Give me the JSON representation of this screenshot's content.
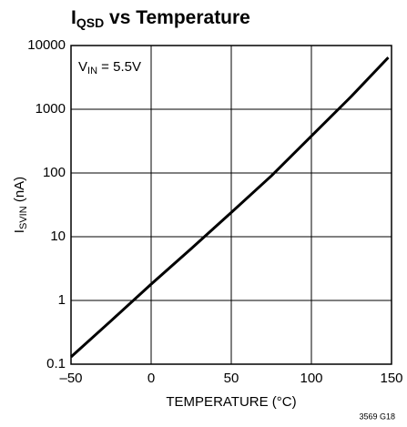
{
  "chart_data": {
    "type": "line",
    "title": {
      "main": "I",
      "sub": "QSD",
      "rest": " vs Temperature"
    },
    "xlabel": "TEMPERATURE (°C)",
    "ylabel": {
      "main": "I",
      "sub": "SVIN",
      "rest": " (nA)"
    },
    "annotation": {
      "main": "V",
      "sub": "IN",
      "rest": " = 5.5V"
    },
    "footnote": "3569 G18",
    "x": [
      -50,
      -25,
      0,
      25,
      50,
      75,
      100,
      125,
      148
    ],
    "series": [
      {
        "color": "#000000",
        "values": [
          0.13,
          0.48,
          1.8,
          6.5,
          24,
          90,
          380,
          1600,
          6500
        ]
      }
    ],
    "xlim": [
      -50,
      150
    ],
    "xticks": [
      {
        "value": -50,
        "label": "–50"
      },
      0,
      50,
      100,
      150
    ],
    "ylim": [
      0.1,
      10000
    ],
    "ylog": true,
    "yticks": [
      0.1,
      1,
      10,
      100,
      1000,
      10000
    ],
    "grid": true
  }
}
